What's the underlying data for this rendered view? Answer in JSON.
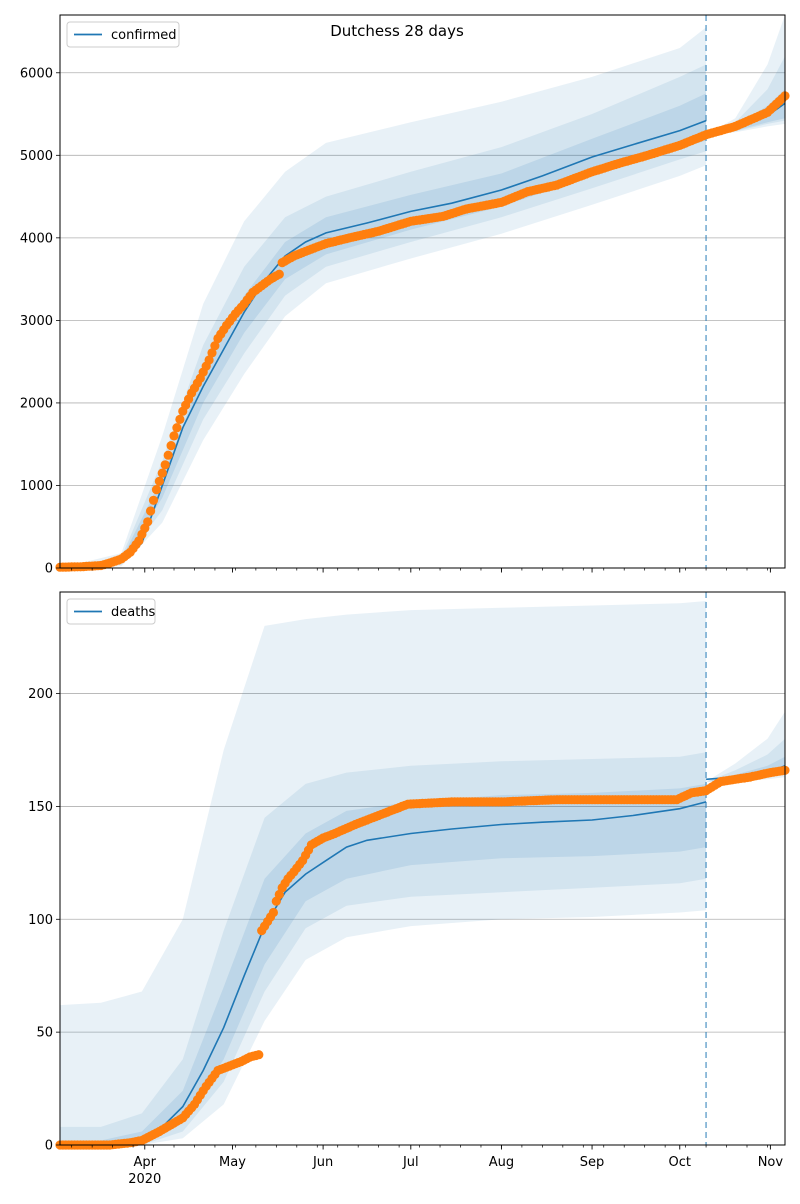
{
  "figure_title": "Dutchess 28 days",
  "colors": {
    "model": "#1f77b4",
    "observed": "#ff7f0e",
    "band": "#1f77b4",
    "grid": "#b0b0b0"
  },
  "x_axis": {
    "start": "2020-03-03",
    "end": "2020-11-06",
    "month_ticks": [
      {
        "date": "2020-04-01",
        "label": "Apr",
        "sublabel": "2020"
      },
      {
        "date": "2020-05-01",
        "label": "May",
        "sublabel": ""
      },
      {
        "date": "2020-06-01",
        "label": "Jun",
        "sublabel": ""
      },
      {
        "date": "2020-07-01",
        "label": "Jul",
        "sublabel": ""
      },
      {
        "date": "2020-08-01",
        "label": "Aug",
        "sublabel": ""
      },
      {
        "date": "2020-09-01",
        "label": "Sep",
        "sublabel": ""
      },
      {
        "date": "2020-10-01",
        "label": "Oct",
        "sublabel": ""
      },
      {
        "date": "2020-11-01",
        "label": "Nov",
        "sublabel": ""
      }
    ],
    "forecast_start": "2020-10-10"
  },
  "chart_data": [
    {
      "type": "line",
      "title": "",
      "legend": {
        "entries": [
          "confirmed"
        ],
        "placement": "top-left"
      },
      "ylim": [
        0,
        6700
      ],
      "yticks": [
        0,
        1000,
        2000,
        3000,
        4000,
        5000,
        6000
      ],
      "grid": "horizontal",
      "model_series": {
        "name": "confirmed",
        "x": [
          "2020-03-03",
          "2020-03-17",
          "2020-03-24",
          "2020-03-31",
          "2020-04-07",
          "2020-04-14",
          "2020-04-21",
          "2020-04-28",
          "2020-05-05",
          "2020-05-12",
          "2020-05-19",
          "2020-05-26",
          "2020-06-02",
          "2020-06-16",
          "2020-07-01",
          "2020-07-15",
          "2020-08-01",
          "2020-08-15",
          "2020-09-01",
          "2020-09-15",
          "2020-10-01",
          "2020-10-10"
        ],
        "y": [
          0,
          10,
          80,
          300,
          1000,
          1700,
          2200,
          2650,
          3100,
          3480,
          3780,
          3950,
          4060,
          4180,
          4320,
          4420,
          4580,
          4750,
          4980,
          5130,
          5300,
          5420
        ]
      },
      "forecast_series": {
        "x": [
          "2020-10-10",
          "2020-10-20",
          "2020-10-31",
          "2020-11-06"
        ],
        "y": [
          5250,
          5330,
          5480,
          5630
        ]
      },
      "bands": {
        "x": [
          "2020-03-03",
          "2020-03-24",
          "2020-04-07",
          "2020-04-21",
          "2020-05-05",
          "2020-05-19",
          "2020-06-02",
          "2020-07-01",
          "2020-08-01",
          "2020-09-01",
          "2020-10-01",
          "2020-10-10"
        ],
        "inner": {
          "lo": [
            0,
            60,
            850,
            2000,
            2850,
            3500,
            3800,
            4100,
            4380,
            4750,
            5080,
            5180
          ],
          "hi": [
            0,
            100,
            1100,
            2350,
            3300,
            3950,
            4250,
            4520,
            4780,
            5200,
            5600,
            5750
          ]
        },
        "middle": {
          "lo": [
            0,
            40,
            700,
            1800,
            2600,
            3300,
            3650,
            3950,
            4250,
            4600,
            4950,
            5050
          ],
          "hi": [
            0,
            130,
            1300,
            2700,
            3650,
            4250,
            4500,
            4800,
            5100,
            5500,
            5950,
            6100
          ]
        },
        "outer": {
          "lo": [
            0,
            20,
            550,
            1550,
            2350,
            3050,
            3450,
            3750,
            4050,
            4400,
            4750,
            4880
          ],
          "hi": [
            0,
            180,
            1600,
            3200,
            4200,
            4800,
            5150,
            5400,
            5650,
            5950,
            6300,
            6550
          ]
        }
      },
      "forecast_bands": {
        "x": [
          "2020-10-10",
          "2020-10-20",
          "2020-10-31",
          "2020-11-06"
        ],
        "inner": {
          "lo": [
            5250,
            5300,
            5400,
            5450
          ],
          "hi": [
            5250,
            5360,
            5600,
            5800
          ]
        },
        "middle": {
          "lo": [
            5250,
            5290,
            5380,
            5420
          ],
          "hi": [
            5250,
            5400,
            5800,
            6200
          ]
        },
        "outer": {
          "lo": [
            5250,
            5280,
            5350,
            5380
          ],
          "hi": [
            5250,
            5450,
            6100,
            6700
          ]
        }
      },
      "observed": {
        "x": [
          "2020-03-03",
          "2020-03-10",
          "2020-03-17",
          "2020-03-20",
          "2020-03-24",
          "2020-03-27",
          "2020-03-30",
          "2020-04-02",
          "2020-04-05",
          "2020-04-08",
          "2020-04-11",
          "2020-04-14",
          "2020-04-17",
          "2020-04-20",
          "2020-04-23",
          "2020-04-26",
          "2020-04-29",
          "2020-05-02",
          "2020-05-05",
          "2020-05-08",
          "2020-05-11",
          "2020-05-14",
          "2020-05-17",
          "2020-05-18",
          "2020-05-22",
          "2020-05-27",
          "2020-06-02",
          "2020-06-10",
          "2020-06-20",
          "2020-07-01",
          "2020-07-12",
          "2020-07-20",
          "2020-08-01",
          "2020-08-10",
          "2020-08-20",
          "2020-09-01",
          "2020-09-10",
          "2020-09-20",
          "2020-10-01",
          "2020-10-10",
          "2020-10-20",
          "2020-10-31",
          "2020-11-06"
        ],
        "y": [
          10,
          15,
          30,
          60,
          110,
          190,
          330,
          560,
          950,
          1250,
          1600,
          1900,
          2120,
          2300,
          2520,
          2780,
          2940,
          3080,
          3200,
          3340,
          3420,
          3500,
          3560,
          3700,
          3780,
          3850,
          3930,
          4000,
          4080,
          4200,
          4260,
          4350,
          4430,
          4560,
          4640,
          4800,
          4900,
          5000,
          5120,
          5250,
          5350,
          5520,
          5720
        ]
      }
    },
    {
      "type": "line",
      "title": "",
      "legend": {
        "entries": [
          "deaths"
        ],
        "placement": "top-left"
      },
      "ylim": [
        0,
        245
      ],
      "yticks": [
        0,
        50,
        100,
        150,
        200
      ],
      "grid": "horizontal",
      "model_series": {
        "name": "deaths",
        "x": [
          "2020-03-03",
          "2020-03-17",
          "2020-03-31",
          "2020-04-07",
          "2020-04-14",
          "2020-04-21",
          "2020-04-28",
          "2020-05-05",
          "2020-05-12",
          "2020-05-19",
          "2020-05-26",
          "2020-06-02",
          "2020-06-09",
          "2020-06-16",
          "2020-07-01",
          "2020-07-15",
          "2020-08-01",
          "2020-08-15",
          "2020-09-01",
          "2020-09-15",
          "2020-10-01",
          "2020-10-10"
        ],
        "y": [
          0,
          1,
          3,
          8,
          17,
          33,
          52,
          75,
          97,
          112,
          120,
          126,
          132,
          135,
          138,
          140,
          142,
          143,
          144,
          146,
          149,
          152
        ]
      },
      "forecast_series": {
        "x": [
          "2020-10-10",
          "2020-10-20",
          "2020-10-31",
          "2020-11-06"
        ],
        "y": [
          162,
          163,
          165,
          168
        ]
      },
      "bands": {
        "x": [
          "2020-03-03",
          "2020-03-17",
          "2020-03-31",
          "2020-04-14",
          "2020-04-28",
          "2020-05-12",
          "2020-05-26",
          "2020-06-09",
          "2020-07-01",
          "2020-08-01",
          "2020-09-01",
          "2020-10-01",
          "2020-10-10"
        ],
        "inner": {
          "lo": [
            0,
            0,
            1,
            10,
            38,
            80,
            108,
            118,
            124,
            127,
            128,
            130,
            132
          ],
          "hi": [
            1,
            2,
            6,
            24,
            70,
            118,
            138,
            148,
            152,
            155,
            156,
            158,
            160
          ]
        },
        "middle": {
          "lo": [
            0,
            0,
            0,
            6,
            28,
            68,
            96,
            106,
            110,
            112,
            114,
            116,
            118
          ],
          "hi": [
            8,
            8,
            14,
            38,
            95,
            145,
            160,
            165,
            168,
            170,
            171,
            172,
            174
          ]
        },
        "outer": {
          "lo": [
            0,
            0,
            0,
            3,
            18,
            55,
            82,
            92,
            97,
            100,
            101,
            103,
            104
          ],
          "hi": [
            62,
            63,
            68,
            100,
            175,
            230,
            233,
            235,
            237,
            238,
            239,
            240,
            241
          ]
        }
      },
      "forecast_bands": {
        "x": [
          "2020-10-10",
          "2020-10-20",
          "2020-10-31",
          "2020-11-06"
        ],
        "inner": {
          "lo": [
            161,
            162,
            164,
            165
          ],
          "hi": [
            161,
            164,
            168,
            172
          ]
        },
        "middle": {
          "lo": [
            161,
            161,
            163,
            164
          ],
          "hi": [
            161,
            166,
            173,
            180
          ]
        },
        "outer": {
          "lo": [
            161,
            161,
            162,
            163
          ],
          "hi": [
            161,
            169,
            180,
            192
          ]
        }
      },
      "observed": {
        "x": [
          "2020-03-03",
          "2020-03-20",
          "2020-03-27",
          "2020-03-31",
          "2020-04-03",
          "2020-04-06",
          "2020-04-10",
          "2020-04-14",
          "2020-04-18",
          "2020-04-22",
          "2020-04-26",
          "2020-04-30",
          "2020-05-04",
          "2020-05-07",
          "2020-05-10",
          "2020-05-11",
          "2020-05-13",
          "2020-05-15",
          "2020-05-16",
          "2020-05-18",
          "2020-05-20",
          "2020-05-22",
          "2020-05-25",
          "2020-05-28",
          "2020-06-01",
          "2020-06-05",
          "2020-06-12",
          "2020-06-20",
          "2020-06-30",
          "2020-07-15",
          "2020-08-01",
          "2020-08-20",
          "2020-09-10",
          "2020-09-25",
          "2020-09-30",
          "2020-10-05",
          "2020-10-10",
          "2020-10-15",
          "2020-10-25",
          "2020-11-01",
          "2020-11-06"
        ],
        "y": [
          0,
          0,
          1,
          2,
          4,
          6,
          9,
          12,
          18,
          26,
          33,
          35,
          37,
          39,
          40,
          95,
          99,
          103,
          108,
          114,
          118,
          121,
          126,
          133,
          136,
          138,
          142,
          146,
          151,
          152,
          152,
          153,
          153,
          153,
          153,
          156,
          157,
          161,
          163,
          165,
          166
        ]
      }
    }
  ]
}
